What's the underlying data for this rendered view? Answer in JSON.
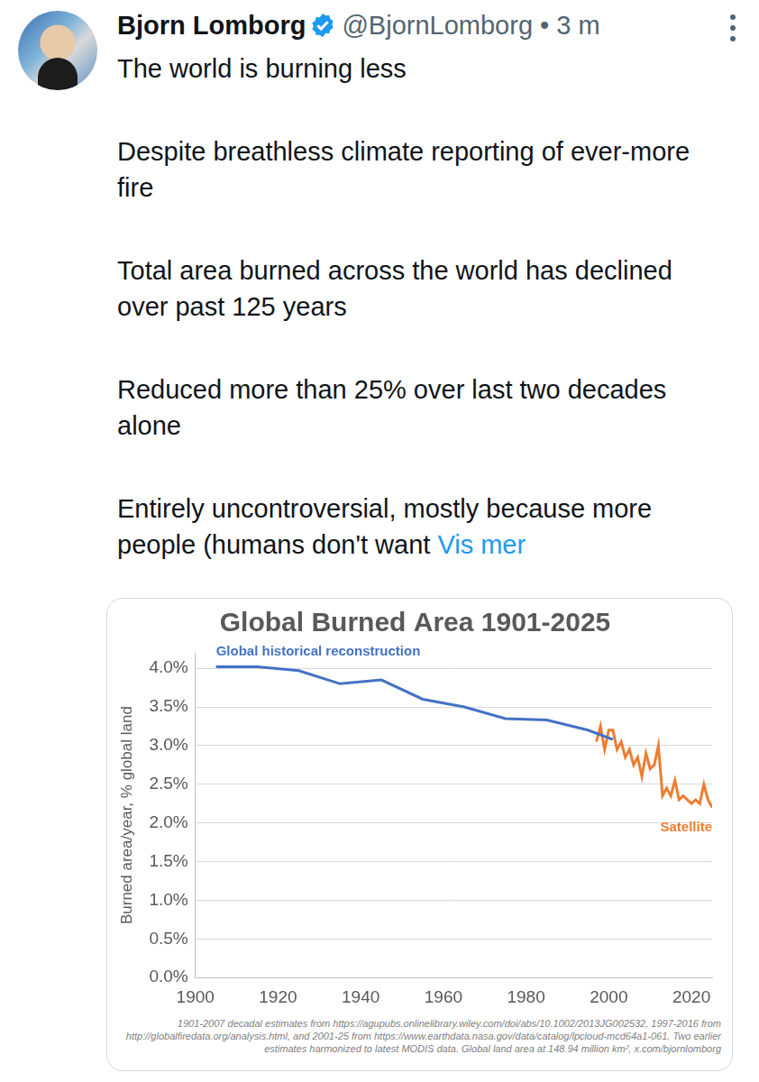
{
  "header": {
    "name": "Bjorn Lomborg",
    "handle_line": "@BjornLomborg • 3 m"
  },
  "body": {
    "paragraphs": [
      "The world is burning less",
      "Despite breathless climate reporting of ever-more fire",
      "Total area burned across the world has declined over past 125 years",
      "Reduced more than 25% over last two decades alone",
      "Entirely uncontroversial, mostly because more people (humans don't want"
    ],
    "more_link": "Vis mer"
  },
  "chart_data": {
    "type": "line",
    "title": "Global Burned Area 1901-2025",
    "y_label": "Burned area/year, % global land",
    "footnote": "1901-2007 decadal estimates from https://agupubs.onlinelibrary.wiley.com/doi/abs/10.1002/2013JG002532, 1997-2016 from http://globalfiredata.org/analysis.html, and 2001-25 from https://www.earthdata.nasa.gov/data/catalog/lpcloud-mcd64a1-061. Two earlier estimates harmonized to latest MODIS data. Global land area at 148.94 million km², x.com/bjornlomborg",
    "series": [
      {
        "name": "Global historical reconstruction",
        "color": "#4472c4",
        "x": [
          1905,
          1915,
          1925,
          1935,
          1945,
          1955,
          1965,
          1975,
          1985,
          1995,
          2001
        ],
        "values": [
          4.02,
          4.02,
          3.97,
          3.8,
          3.85,
          3.6,
          3.5,
          3.35,
          3.33,
          3.2,
          3.08
        ]
      },
      {
        "name": "Satellite",
        "color": "#ed7d31",
        "x": [
          1997,
          1998,
          1999,
          2000,
          2001,
          2002,
          2003,
          2004,
          2005,
          2006,
          2007,
          2008,
          2009,
          2010,
          2011,
          2012,
          2013,
          2014,
          2015,
          2016,
          2017,
          2018,
          2019,
          2020,
          2021,
          2022,
          2023,
          2024,
          2025
        ],
        "values": [
          3.05,
          3.25,
          2.95,
          3.2,
          3.2,
          2.95,
          3.05,
          2.85,
          2.95,
          2.75,
          2.85,
          2.6,
          2.9,
          2.7,
          2.75,
          3.0,
          2.35,
          2.45,
          2.35,
          2.55,
          2.3,
          2.35,
          2.3,
          2.25,
          2.3,
          2.25,
          2.5,
          2.3,
          2.2
        ]
      }
    ],
    "xlim": [
      1900,
      2025
    ],
    "xticks": [
      1900,
      1920,
      1940,
      1960,
      1980,
      2000,
      2020
    ],
    "ylim": [
      0,
      4.2
    ],
    "yticks": [
      {
        "value": 0,
        "label": "0.0%"
      },
      {
        "value": 0.5,
        "label": "0.5%"
      },
      {
        "value": 1,
        "label": "1.0%"
      },
      {
        "value": 1.5,
        "label": "1.5%"
      },
      {
        "value": 2,
        "label": "2.0%"
      },
      {
        "value": 2.5,
        "label": "2.5%"
      },
      {
        "value": 3,
        "label": "3.0%"
      },
      {
        "value": 3.5,
        "label": "3.5%"
      },
      {
        "value": 4,
        "label": "4.0%"
      }
    ],
    "grid": true
  }
}
